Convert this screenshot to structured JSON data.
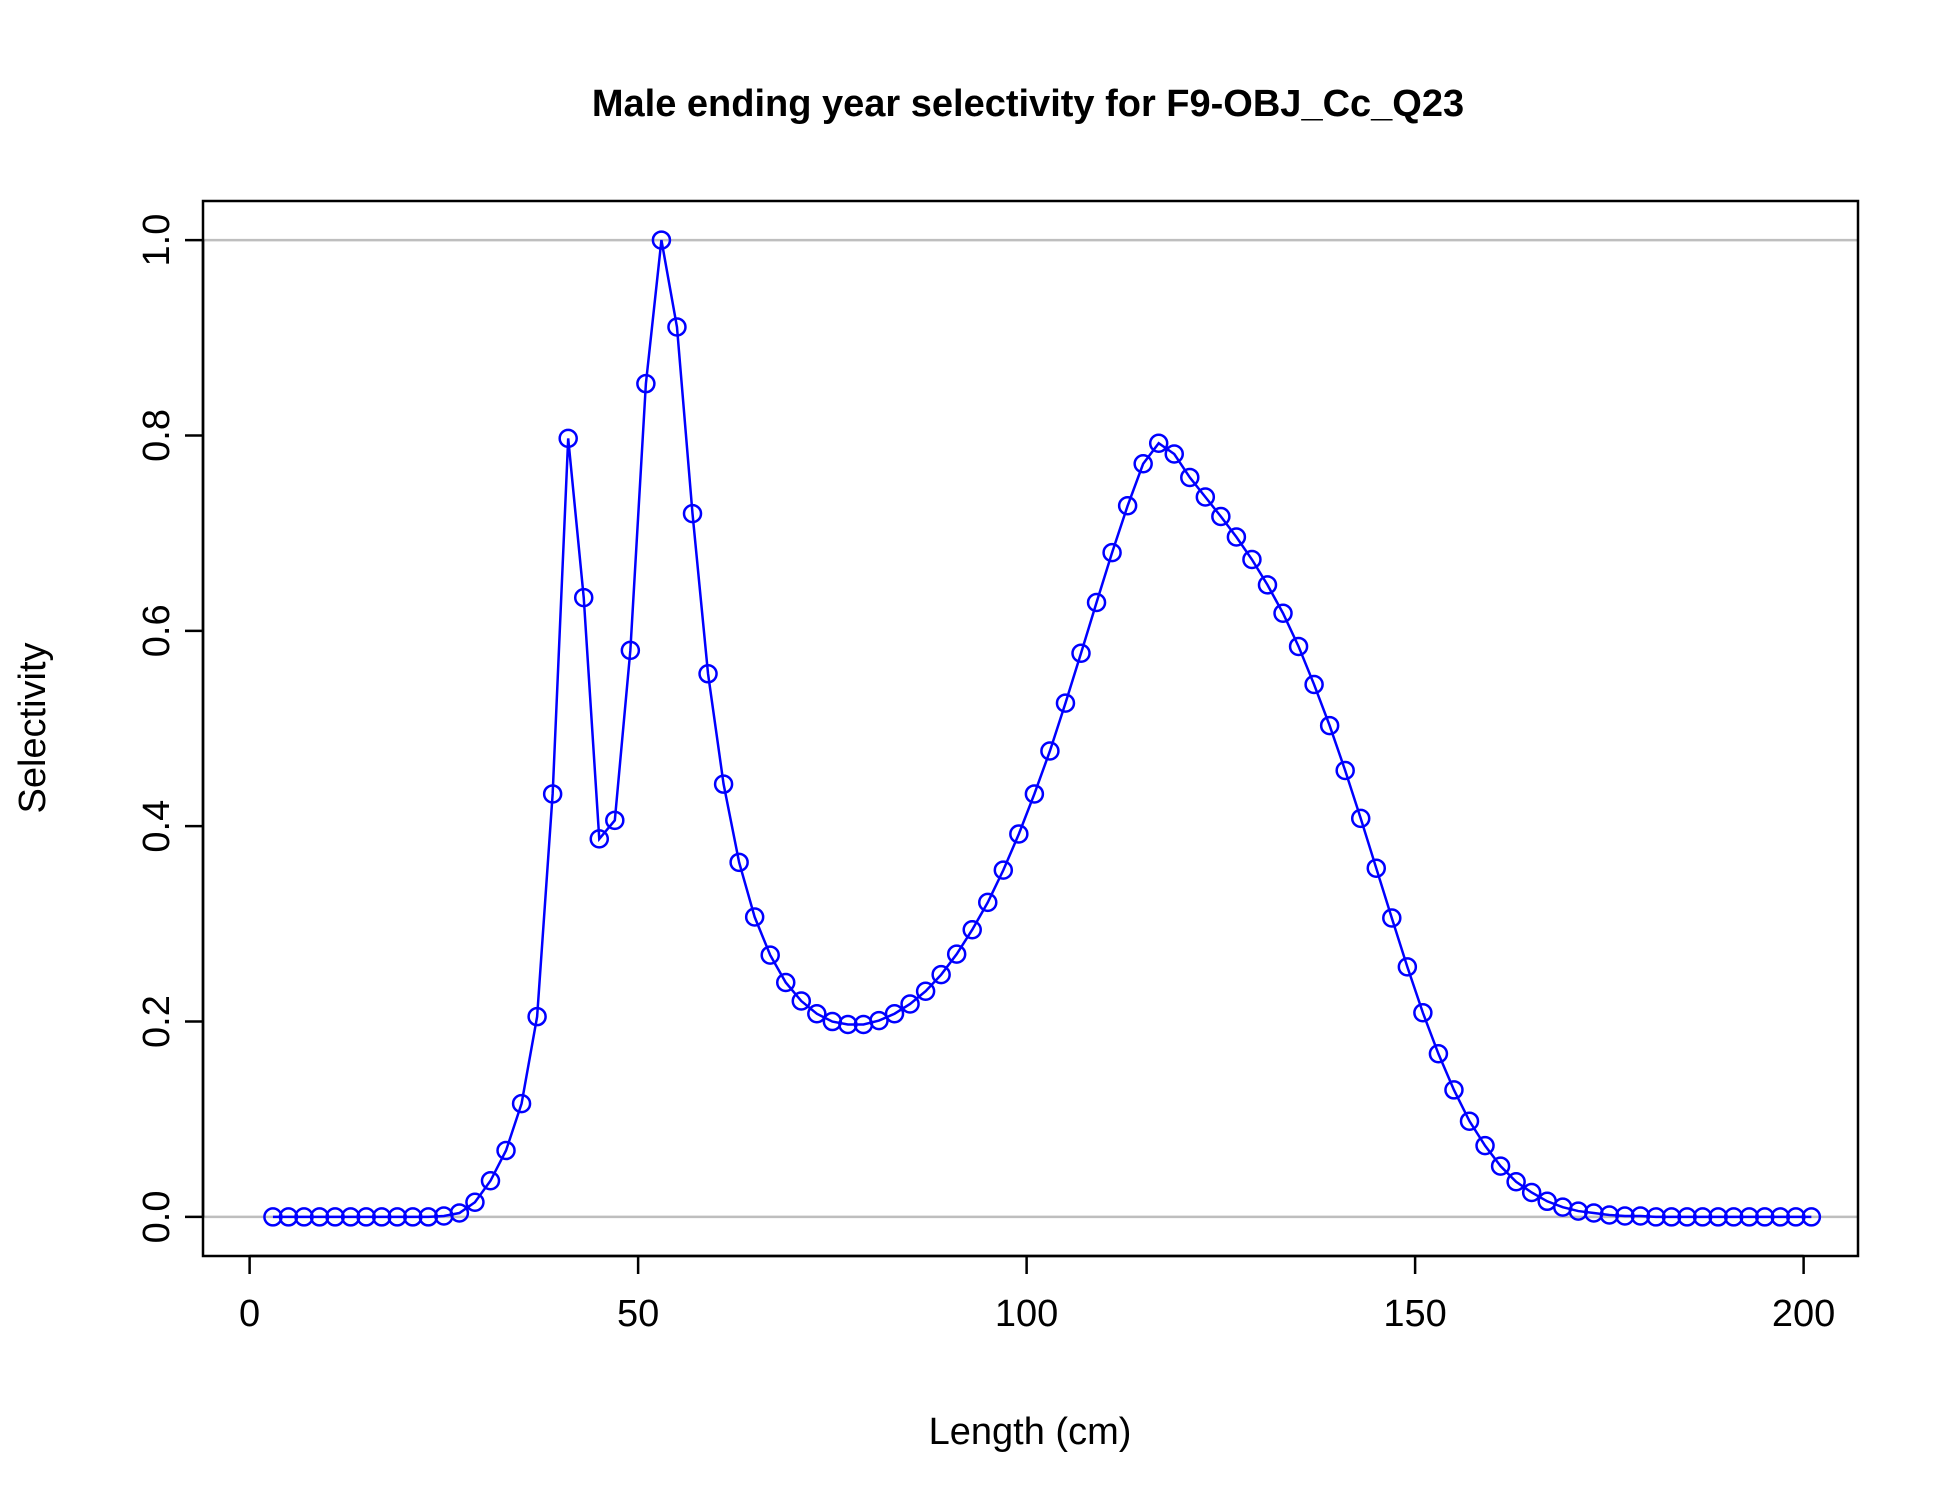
{
  "chart_data": {
    "type": "line",
    "title": "Male ending year selectivity for F9-OBJ_Cc_Q23",
    "xlabel": "Length (cm)",
    "ylabel": "Selectivity",
    "xlim": [
      -6,
      207
    ],
    "ylim": [
      -0.04,
      1.04
    ],
    "x_ticks": [
      0,
      50,
      100,
      150,
      200
    ],
    "x_tick_labels": [
      "0",
      "50",
      "100",
      "150",
      "200"
    ],
    "y_ticks": [
      0.0,
      0.2,
      0.4,
      0.6,
      0.8,
      1.0
    ],
    "y_tick_labels": [
      "0.0",
      "0.2",
      "0.4",
      "0.6",
      "0.8",
      "1.0"
    ],
    "reference_lines_y": [
      0,
      1
    ],
    "colors": {
      "series": "#0000ff",
      "reference": "#bebebe",
      "axis": "#000000"
    },
    "markers": "open-circle",
    "series": [
      {
        "x": [
          3,
          5,
          7,
          9,
          11,
          13,
          15,
          17,
          19,
          21,
          23,
          25,
          27,
          29,
          31,
          33,
          35,
          37,
          39,
          41,
          43,
          45,
          47,
          49,
          51,
          53,
          55,
          57,
          59,
          61,
          63,
          65,
          67,
          69,
          71,
          73,
          75,
          77,
          79,
          81,
          83,
          85,
          87,
          89,
          91,
          93,
          95,
          97,
          99,
          101,
          103,
          105,
          107,
          109,
          111,
          113,
          115,
          117,
          119,
          121,
          123,
          125,
          127,
          129,
          131,
          133,
          135,
          137,
          139,
          141,
          143,
          145,
          147,
          149,
          151,
          153,
          155,
          157,
          159,
          161,
          163,
          165,
          167,
          169,
          171,
          173,
          175,
          177,
          179,
          181,
          183,
          185,
          187,
          189,
          191,
          193,
          195,
          197,
          199,
          201
        ],
        "values": [
          0,
          0,
          0,
          0,
          0,
          0,
          0,
          0,
          0,
          0,
          0,
          0.001,
          0.004,
          0.015,
          0.037,
          0.068,
          0.116,
          0.205,
          0.433,
          0.797,
          0.634,
          0.387,
          0.406,
          0.58,
          0.853,
          1.0,
          0.911,
          0.72,
          0.556,
          0.443,
          0.363,
          0.307,
          0.268,
          0.24,
          0.221,
          0.208,
          0.2,
          0.197,
          0.197,
          0.201,
          0.208,
          0.218,
          0.231,
          0.248,
          0.269,
          0.294,
          0.322,
          0.355,
          0.392,
          0.433,
          0.477,
          0.526,
          0.577,
          0.629,
          0.68,
          0.728,
          0.771,
          0.792,
          0.781,
          0.757,
          0.737,
          0.717,
          0.696,
          0.673,
          0.647,
          0.618,
          0.584,
          0.545,
          0.503,
          0.457,
          0.408,
          0.357,
          0.306,
          0.256,
          0.209,
          0.167,
          0.13,
          0.098,
          0.073,
          0.052,
          0.036,
          0.025,
          0.016,
          0.01,
          0.006,
          0.004,
          0.002,
          0.001,
          0.001,
          0,
          0,
          0,
          0,
          0,
          0,
          0,
          0,
          0,
          0,
          0
        ]
      }
    ]
  }
}
